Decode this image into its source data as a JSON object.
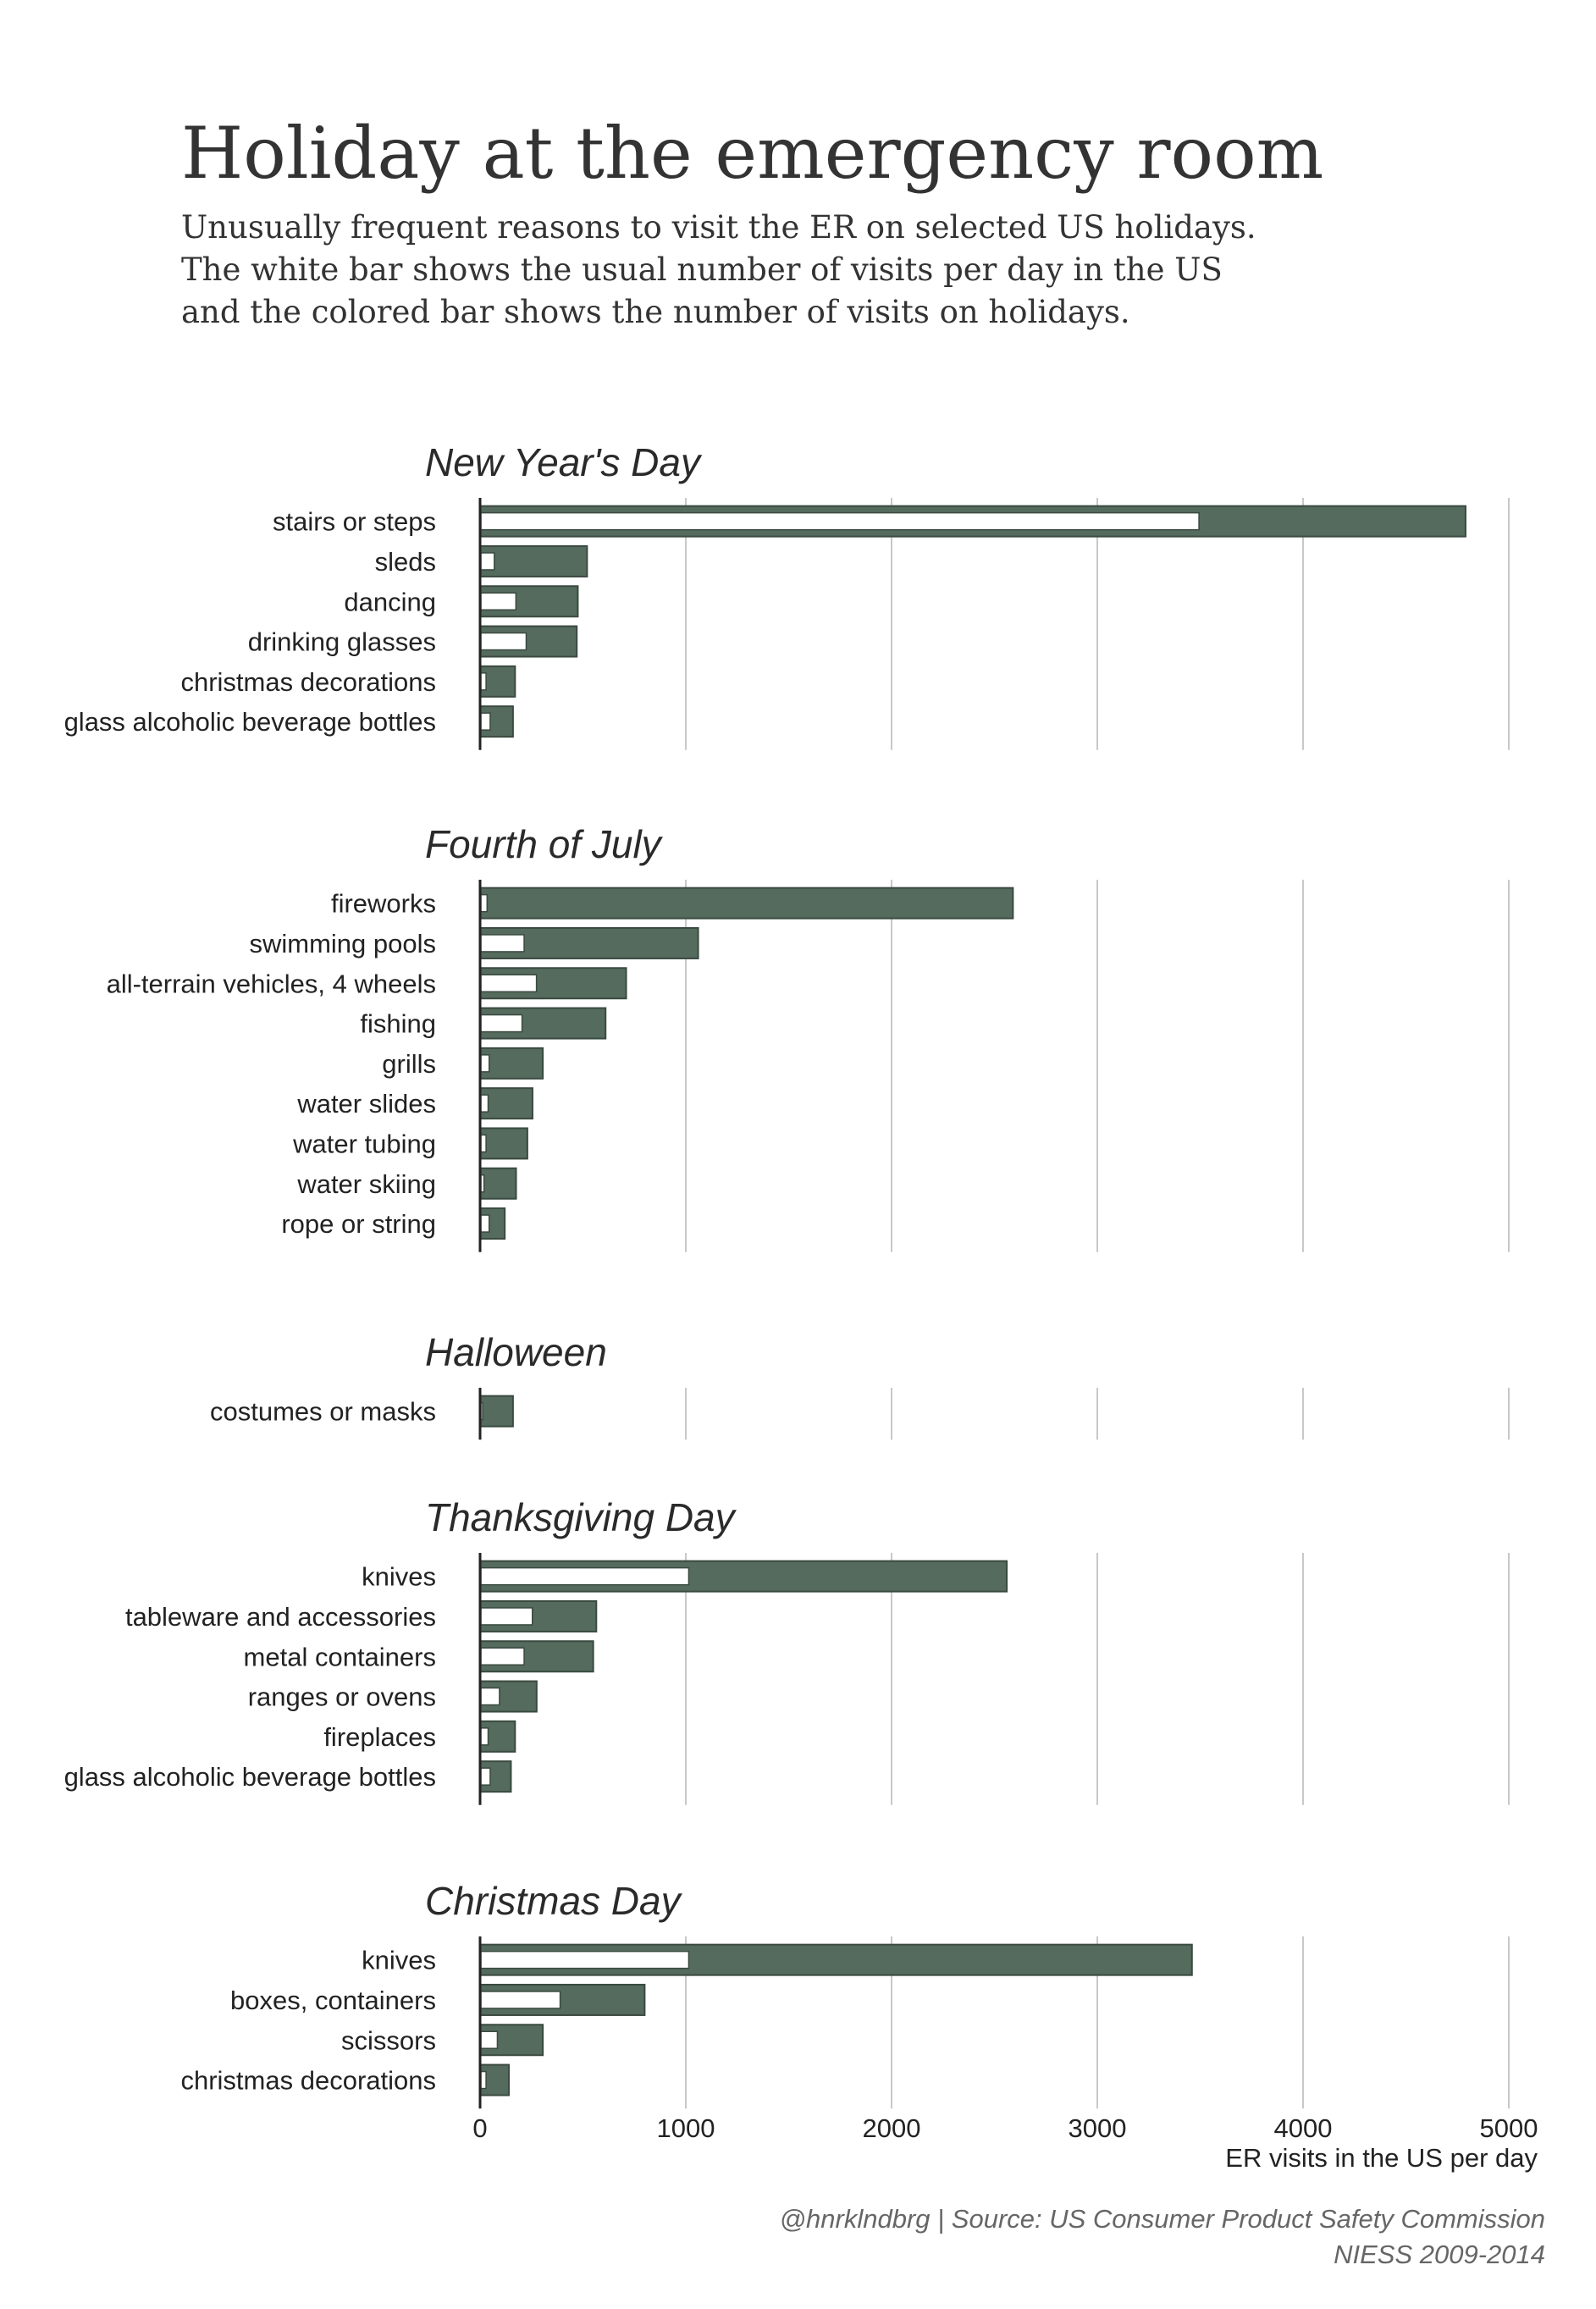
{
  "title": "Holiday at the emergency room",
  "subtitle_lines": [
    "Unusually frequent reasons to visit the ER on selected US holidays.",
    "The white bar shows the usual number of visits per day in the US",
    "and the colored bar shows the number of visits on holidays."
  ],
  "credit_lines": [
    "@hnrklndbrg | Source: US Consumer Product Safety Commission",
    "NIESS 2009-2014"
  ],
  "colors": {
    "holiday_bar": "#546b5d",
    "usual_bar": "#ffffff",
    "bar_stroke": "#3a4a40",
    "grid": "#c8c8c8",
    "text": "#222222"
  },
  "chart_data": {
    "type": "bar",
    "orientation": "horizontal",
    "xlabel": "ER visits in the US per day",
    "xlim": [
      0,
      5000
    ],
    "xticks": [
      0,
      1000,
      2000,
      3000,
      4000,
      5000
    ],
    "grid": true,
    "legend": "none",
    "panels": [
      {
        "title": "New Year's Day",
        "categories": [
          "stairs or steps",
          "sleds",
          "dancing",
          "drinking glasses",
          "christmas decorations",
          "glass alcoholic beverage bottles"
        ],
        "holiday": [
          4790,
          520,
          475,
          470,
          170,
          160
        ],
        "usual": [
          3490,
          65,
          170,
          220,
          25,
          45
        ]
      },
      {
        "title": "Fourth of July",
        "categories": [
          "fireworks",
          "swimming pools",
          "all-terrain vehicles, 4 wheels",
          "fishing",
          "grills",
          "water slides",
          "water tubing",
          "water skiing",
          "rope or string"
        ],
        "holiday": [
          2590,
          1060,
          710,
          610,
          305,
          255,
          230,
          175,
          120
        ],
        "usual": [
          30,
          210,
          270,
          200,
          40,
          35,
          25,
          15,
          40
        ]
      },
      {
        "title": "Halloween",
        "categories": [
          "costumes or masks"
        ],
        "holiday": [
          160
        ],
        "usual": [
          5
        ]
      },
      {
        "title": "Thanksgiving Day",
        "categories": [
          "knives",
          "tableware and accessories",
          "metal containers",
          "ranges or ovens",
          "fireplaces",
          "glass alcoholic beverage bottles"
        ],
        "holiday": [
          2560,
          565,
          550,
          275,
          170,
          150
        ],
        "usual": [
          1010,
          250,
          210,
          90,
          35,
          45
        ]
      },
      {
        "title": "Christmas Day",
        "categories": [
          "knives",
          "boxes, containers",
          "scissors",
          "christmas decorations"
        ],
        "holiday": [
          3460,
          800,
          305,
          140
        ],
        "usual": [
          1010,
          385,
          80,
          25
        ]
      }
    ]
  }
}
